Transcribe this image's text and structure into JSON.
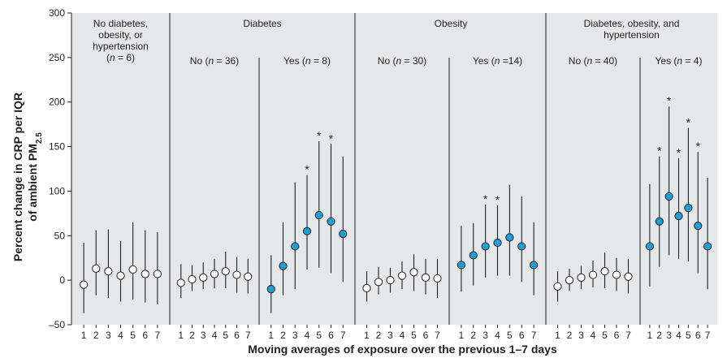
{
  "chart_data": {
    "type": "scatter",
    "subtype": "point-with-error-bars, faceted",
    "xlabel": "Moving averages of exposure over the previous 1–7 days",
    "ylabel_line1": "Percent change in CRP per IQR",
    "ylabel_line2_main": "of ambient PM",
    "ylabel_line2_sub": "2.5",
    "ylim": [
      -50,
      300
    ],
    "yticks": [
      -50,
      0,
      50,
      100,
      150,
      200,
      250,
      300
    ],
    "ytick_labels": [
      "–50",
      "0",
      "50",
      "100",
      "150",
      "200",
      "250",
      "300"
    ],
    "x": [
      1,
      2,
      3,
      4,
      5,
      6,
      7
    ],
    "colors": {
      "background": "#e6e7e8",
      "filled_marker": "#1ba1d9",
      "open_marker": "#ffffff",
      "line": "#231f20"
    },
    "groups": [
      {
        "title": "No diabetes,\nobesity, or\nhypertension\n(n = 6)",
        "subpanels": [
          0
        ]
      },
      {
        "title": "Diabetes",
        "subpanels": [
          1,
          2
        ]
      },
      {
        "title": "Obesity",
        "subpanels": [
          3,
          4
        ]
      },
      {
        "title": "Diabetes, obesity, and\nhypertension",
        "subpanels": [
          5,
          6
        ]
      }
    ],
    "subpanels": [
      {
        "label": "",
        "filled": false,
        "values": [
          -5,
          13,
          10,
          5,
          12,
          7,
          7
        ],
        "lower": [
          -37,
          -17,
          -20,
          -24,
          -22,
          -25,
          -27
        ],
        "upper": [
          42,
          56,
          57,
          44,
          65,
          56,
          54
        ],
        "significant": [
          false,
          false,
          false,
          false,
          false,
          false,
          false
        ]
      },
      {
        "label": "No (n = 36)",
        "filled": false,
        "values": [
          -3,
          1,
          3,
          7,
          10,
          6,
          4
        ],
        "lower": [
          -20,
          -12,
          -10,
          -9,
          -9,
          -14,
          -15
        ],
        "upper": [
          18,
          17,
          20,
          24,
          32,
          26,
          24
        ],
        "significant": [
          false,
          false,
          false,
          false,
          false,
          false,
          false
        ]
      },
      {
        "label": "Yes (n = 8)",
        "filled": true,
        "values": [
          -10,
          16,
          38,
          55,
          73,
          66,
          52
        ],
        "lower": [
          -37,
          -17,
          -10,
          12,
          14,
          8,
          -2
        ],
        "upper": [
          28,
          65,
          110,
          118,
          156,
          153,
          139
        ],
        "significant": [
          false,
          false,
          false,
          true,
          true,
          true,
          false
        ]
      },
      {
        "label": "No (n = 30)",
        "filled": false,
        "values": [
          -9,
          -2,
          0,
          5,
          9,
          3,
          2
        ],
        "lower": [
          -24,
          -16,
          -14,
          -10,
          -12,
          -16,
          -20
        ],
        "upper": [
          10,
          15,
          14,
          21,
          29,
          24,
          24
        ],
        "significant": [
          false,
          false,
          false,
          false,
          false,
          false,
          false
        ]
      },
      {
        "label": "Yes (n =14)",
        "filled": true,
        "values": [
          17,
          28,
          38,
          42,
          48,
          38,
          17
        ],
        "lower": [
          -13,
          -6,
          3,
          5,
          5,
          -2,
          -17
        ],
        "upper": [
          61,
          64,
          85,
          84,
          107,
          94,
          65
        ],
        "significant": [
          false,
          false,
          true,
          true,
          false,
          false,
          false
        ]
      },
      {
        "label": "No (n = 40)",
        "filled": false,
        "values": [
          -7,
          0,
          3,
          6,
          10,
          6,
          4
        ],
        "lower": [
          -24,
          -12,
          -10,
          -8,
          -9,
          -12,
          -15
        ],
        "upper": [
          10,
          13,
          16,
          22,
          31,
          25,
          24
        ],
        "significant": [
          false,
          false,
          false,
          false,
          false,
          false,
          false
        ]
      },
      {
        "label": "Yes (n = 4)",
        "filled": true,
        "values": [
          38,
          66,
          94,
          72,
          81,
          61,
          38
        ],
        "lower": [
          -7,
          15,
          28,
          24,
          21,
          8,
          -10
        ],
        "upper": [
          108,
          139,
          195,
          137,
          171,
          144,
          115
        ],
        "significant": [
          false,
          true,
          true,
          true,
          true,
          true,
          false
        ]
      }
    ],
    "significance_symbol": "*"
  }
}
